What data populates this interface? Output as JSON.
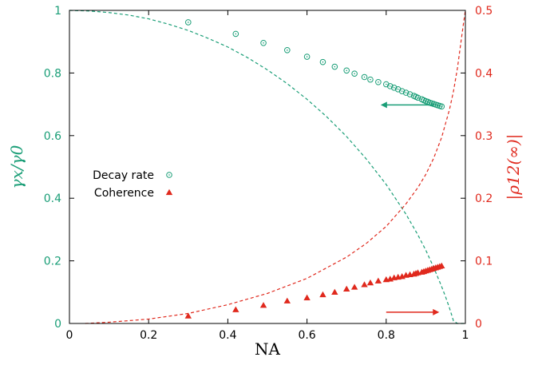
{
  "chart_data": {
    "type": "scatter",
    "title": "",
    "xlabel": "NA",
    "ylabel": "γx/γ0",
    "y2label": "|ρ12(∞)|",
    "xlim": [
      0,
      1
    ],
    "ylim": [
      0,
      1
    ],
    "y2lim": [
      0,
      0.5
    ],
    "x_ticks": [
      "0",
      "0.2",
      "0.4",
      "0.6",
      "0.8",
      "1"
    ],
    "y_ticks": [
      "0",
      "0.2",
      "0.4",
      "0.6",
      "0.8",
      "1"
    ],
    "y2_ticks": [
      "0",
      "0.1",
      "0.2",
      "0.3",
      "0.4",
      "0.5"
    ],
    "grid": false,
    "legend_position": "left-middle",
    "colors": {
      "decay": "#1a9e77",
      "coherence": "#e0291d",
      "frame": "#000000"
    },
    "series": [
      {
        "name": "Decay rate",
        "axis": "left",
        "marker": "circle-dot",
        "color": "#1a9e77",
        "x": [
          0.3,
          0.42,
          0.49,
          0.55,
          0.6,
          0.64,
          0.67,
          0.7,
          0.72,
          0.745,
          0.76,
          0.78,
          0.8,
          0.81,
          0.82,
          0.83,
          0.84,
          0.85,
          0.86,
          0.87,
          0.875,
          0.88,
          0.89,
          0.895,
          0.9,
          0.905,
          0.91,
          0.915,
          0.92,
          0.925,
          0.93,
          0.935,
          0.94
        ],
        "y": [
          0.962,
          0.925,
          0.896,
          0.873,
          0.852,
          0.835,
          0.82,
          0.808,
          0.798,
          0.787,
          0.779,
          0.771,
          0.764,
          0.758,
          0.753,
          0.748,
          0.742,
          0.737,
          0.732,
          0.727,
          0.724,
          0.721,
          0.716,
          0.713,
          0.71,
          0.708,
          0.705,
          0.703,
          0.701,
          0.699,
          0.697,
          0.695,
          0.693
        ]
      },
      {
        "name": "Coherence",
        "axis": "right",
        "marker": "triangle",
        "color": "#e0291d",
        "x": [
          0.3,
          0.42,
          0.49,
          0.55,
          0.6,
          0.64,
          0.67,
          0.7,
          0.72,
          0.745,
          0.76,
          0.78,
          0.8,
          0.81,
          0.82,
          0.83,
          0.84,
          0.85,
          0.86,
          0.87,
          0.875,
          0.88,
          0.89,
          0.895,
          0.9,
          0.905,
          0.91,
          0.915,
          0.92,
          0.925,
          0.93,
          0.935,
          0.94
        ],
        "y": [
          0.012,
          0.022,
          0.029,
          0.036,
          0.041,
          0.046,
          0.05,
          0.055,
          0.058,
          0.062,
          0.065,
          0.068,
          0.07,
          0.071,
          0.073,
          0.074,
          0.075,
          0.077,
          0.078,
          0.079,
          0.08,
          0.081,
          0.082,
          0.083,
          0.084,
          0.085,
          0.086,
          0.087,
          0.088,
          0.089,
          0.09,
          0.091,
          0.092
        ]
      },
      {
        "name": "",
        "axis": "left",
        "style": "dashed-line",
        "color": "#1a9e77",
        "x": [
          0,
          0.05,
          0.1,
          0.15,
          0.2,
          0.25,
          0.3,
          0.35,
          0.4,
          0.45,
          0.5,
          0.55,
          0.6,
          0.65,
          0.7,
          0.75,
          0.8,
          0.85,
          0.88,
          0.9,
          0.92,
          0.94,
          0.95,
          0.96,
          0.97,
          0.98,
          0.99,
          0.995,
          1.0
        ],
        "y": [
          1.0,
          0.998,
          0.993,
          0.985,
          0.973,
          0.956,
          0.936,
          0.911,
          0.883,
          0.849,
          0.81,
          0.766,
          0.716,
          0.66,
          0.597,
          0.525,
          0.444,
          0.349,
          0.283,
          0.234,
          0.179,
          0.118,
          0.085,
          0.049,
          0.008,
          0.0,
          0.0,
          0.0,
          0.0
        ]
      },
      {
        "name": "",
        "axis": "right",
        "style": "dashed-line",
        "color": "#e0291d",
        "x": [
          0.04,
          0.1,
          0.2,
          0.3,
          0.4,
          0.5,
          0.6,
          0.7,
          0.75,
          0.8,
          0.85,
          0.88,
          0.9,
          0.92,
          0.94,
          0.96,
          0.97,
          0.98,
          0.99,
          0.995,
          1.0
        ],
        "y": [
          0.0,
          0.002,
          0.007,
          0.016,
          0.03,
          0.048,
          0.072,
          0.106,
          0.128,
          0.155,
          0.191,
          0.217,
          0.238,
          0.264,
          0.297,
          0.342,
          0.371,
          0.408,
          0.455,
          0.478,
          0.5
        ]
      }
    ],
    "annotations": [
      {
        "type": "arrow",
        "direction": "left",
        "color": "#1a9e77",
        "points_to": "left-axis",
        "x": [
          0.92,
          0.79
        ],
        "y": [
          0.698,
          0.698
        ]
      },
      {
        "type": "arrow",
        "direction": "right",
        "color": "#e0291d",
        "points_to": "right-axis",
        "x": [
          0.8,
          0.93
        ],
        "y": [
          0.018,
          0.018
        ]
      }
    ]
  }
}
